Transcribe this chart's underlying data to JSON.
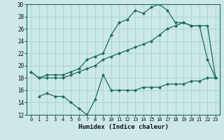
{
  "xlabel": "Humidex (Indice chaleur)",
  "bg_color": "#cce8e8",
  "grid_color": "#aad4d4",
  "line_color": "#1a6b5a",
  "xlim": [
    -0.5,
    23.5
  ],
  "ylim": [
    12,
    30
  ],
  "xticks": [
    0,
    1,
    2,
    3,
    4,
    5,
    6,
    7,
    8,
    9,
    10,
    11,
    12,
    13,
    14,
    15,
    16,
    17,
    18,
    19,
    20,
    21,
    22,
    23
  ],
  "yticks": [
    12,
    14,
    16,
    18,
    20,
    22,
    24,
    26,
    28,
    30
  ],
  "line1_x": [
    0,
    1,
    2,
    3,
    4,
    5,
    6,
    7,
    8,
    9,
    10,
    11,
    12,
    13,
    14,
    15,
    16,
    17,
    18,
    19,
    20,
    21,
    22,
    23
  ],
  "line1_y": [
    19,
    18,
    18.5,
    18.5,
    18.5,
    19,
    19.5,
    21,
    21.5,
    22,
    25,
    27,
    27.5,
    29,
    28.5,
    29.5,
    30,
    29,
    27,
    27,
    26.5,
    26.5,
    21,
    18
  ],
  "line2_x": [
    0,
    1,
    2,
    3,
    4,
    5,
    6,
    7,
    8,
    9,
    10,
    11,
    12,
    13,
    14,
    15,
    16,
    17,
    18,
    19,
    20,
    21,
    22,
    23
  ],
  "line2_y": [
    19,
    18,
    18,
    18,
    18,
    18.5,
    19,
    19.5,
    20,
    21,
    21.5,
    22,
    22.5,
    23,
    23.5,
    24,
    25,
    26,
    26.5,
    27,
    26.5,
    26.5,
    26.5,
    18
  ],
  "line3_x": [
    1,
    2,
    3,
    4,
    5,
    6,
    7,
    8,
    9,
    10,
    11,
    12,
    13,
    14,
    15,
    16,
    17,
    18,
    19,
    20,
    21,
    22,
    23
  ],
  "line3_y": [
    15,
    15.5,
    15,
    15,
    14,
    13,
    12,
    14.5,
    18.5,
    16,
    16,
    16,
    16,
    16.5,
    16.5,
    16.5,
    17,
    17,
    17,
    17.5,
    17.5,
    18,
    18
  ]
}
